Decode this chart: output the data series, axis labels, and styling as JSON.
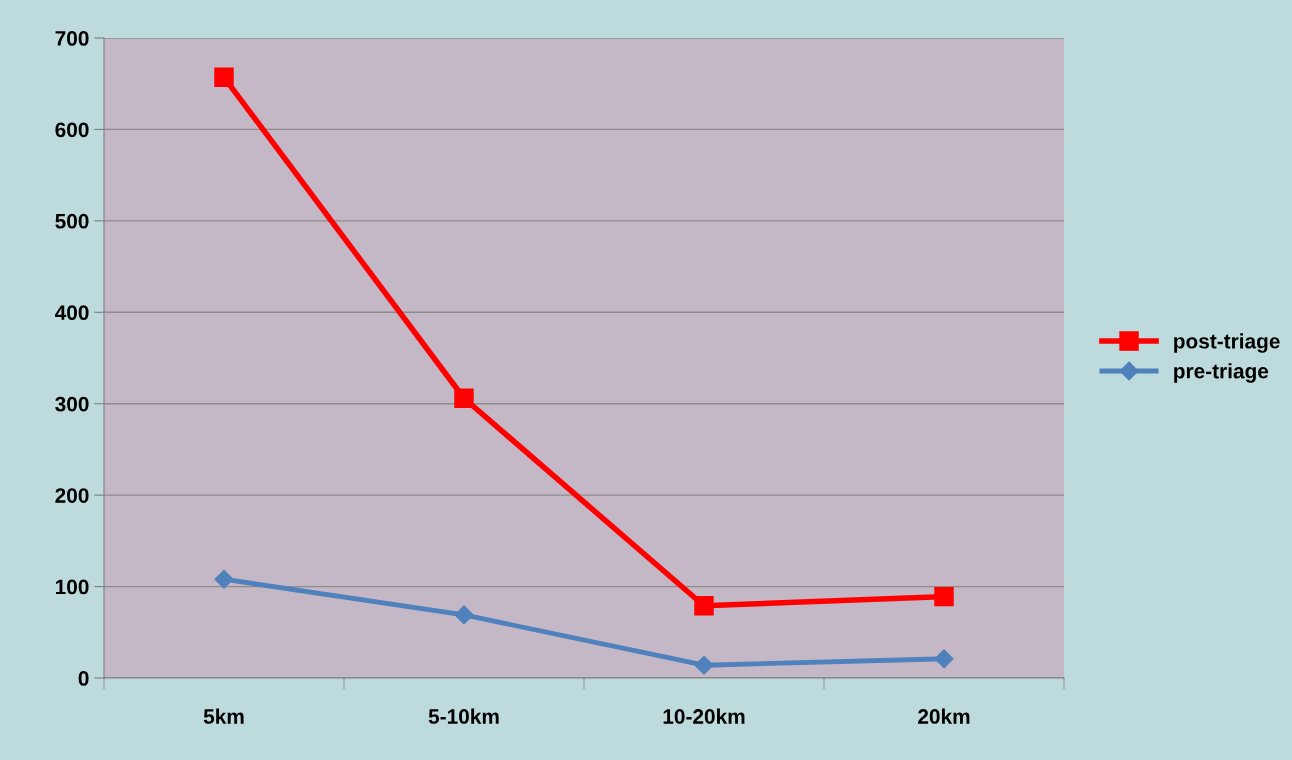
{
  "chart_data": {
    "type": "line",
    "categories": [
      "5km",
      "5-10km",
      "10-20km",
      "20km"
    ],
    "series": [
      {
        "name": "post-triage",
        "color": "#ff0000",
        "marker": "square",
        "values": [
          657,
          306,
          79,
          89
        ]
      },
      {
        "name": "pre-triage",
        "color": "#4f81bd",
        "marker": "diamond",
        "values": [
          108,
          69,
          14,
          21
        ]
      }
    ],
    "ylim": [
      0,
      700
    ],
    "yticks": [
      0,
      100,
      200,
      300,
      400,
      500,
      600,
      700
    ],
    "grid": "y",
    "legend": "right"
  }
}
